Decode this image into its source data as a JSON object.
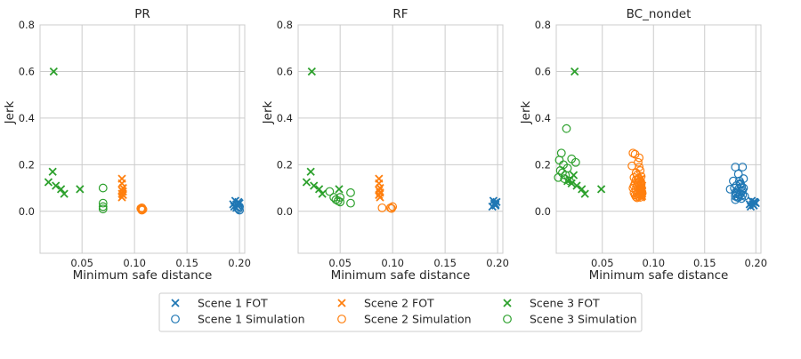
{
  "colors": {
    "scene1": "#1f77b4",
    "scene2": "#ff7f0e",
    "scene3": "#2ca02c",
    "grid": "#cccccc",
    "frame": "#cccccc",
    "text": "#262626"
  },
  "legend": {
    "placement": "bottom-center",
    "entries": [
      {
        "label": "Scene 1 FOT",
        "color": "scene1",
        "marker": "x"
      },
      {
        "label": "Scene 1 Simulation",
        "color": "scene1",
        "marker": "o"
      },
      {
        "label": "Scene 2 FOT",
        "color": "scene2",
        "marker": "x"
      },
      {
        "label": "Scene 2 Simulation",
        "color": "scene2",
        "marker": "o"
      },
      {
        "label": "Scene 3 FOT",
        "color": "scene3",
        "marker": "x"
      },
      {
        "label": "Scene 3 Simulation",
        "color": "scene3",
        "marker": "o"
      }
    ]
  },
  "chart_data": [
    {
      "type": "scatter",
      "title": "PR",
      "xlabel": "Minimum safe distance",
      "ylabel": "Jerk",
      "xlim": [
        0.01,
        0.205
      ],
      "ylim": [
        -0.18,
        0.8
      ],
      "xticks": [
        0.05,
        0.1,
        0.15,
        0.2
      ],
      "xtick_labels": [
        "0.05",
        "0.10",
        "0.15",
        "0.20"
      ],
      "yticks": [
        0.0,
        0.2,
        0.4,
        0.6,
        0.8
      ],
      "ytick_labels": [
        "0.0",
        "0.2",
        "0.4",
        "0.6",
        "0.8"
      ],
      "grid": true,
      "series": [
        {
          "name": "Scene 1 FOT",
          "color": "scene1",
          "marker": "x",
          "x": [
            0.195,
            0.197,
            0.199,
            0.196,
            0.198,
            0.2,
            0.197,
            0.194
          ],
          "y": [
            0.02,
            0.03,
            0.04,
            0.045,
            0.025,
            0.035,
            0.015,
            0.03
          ]
        },
        {
          "name": "Scene 1 Simulation",
          "color": "scene1",
          "marker": "o",
          "x": [
            0.199,
            0.2,
            0.2,
            0.198
          ],
          "y": [
            0.01,
            0.005,
            0.02,
            0.015
          ]
        },
        {
          "name": "Scene 2 FOT",
          "color": "scene2",
          "marker": "x",
          "x": [
            0.088,
            0.088,
            0.089,
            0.088,
            0.089,
            0.088,
            0.089,
            0.088
          ],
          "y": [
            0.14,
            0.12,
            0.1,
            0.09,
            0.085,
            0.075,
            0.07,
            0.06
          ]
        },
        {
          "name": "Scene 2 Simulation",
          "color": "scene2",
          "marker": "o",
          "x": [
            0.107,
            0.107,
            0.108,
            0.107,
            0.106
          ],
          "y": [
            0.015,
            0.01,
            0.008,
            0.005,
            0.012
          ]
        },
        {
          "name": "Scene 3 FOT",
          "color": "scene3",
          "marker": "x",
          "x": [
            0.023,
            0.022,
            0.018,
            0.025,
            0.03,
            0.033,
            0.048
          ],
          "y": [
            0.6,
            0.17,
            0.125,
            0.11,
            0.095,
            0.075,
            0.095
          ]
        },
        {
          "name": "Scene 3 Simulation",
          "color": "scene3",
          "marker": "o",
          "x": [
            0.07,
            0.07,
            0.07,
            0.07
          ],
          "y": [
            0.1,
            0.035,
            0.02,
            0.01
          ]
        }
      ]
    },
    {
      "type": "scatter",
      "title": "RF",
      "xlabel": "Minimum safe distance",
      "ylabel": "Jerk",
      "xlim": [
        0.01,
        0.205
      ],
      "ylim": [
        -0.18,
        0.8
      ],
      "xticks": [
        0.05,
        0.1,
        0.15,
        0.2
      ],
      "xtick_labels": [
        "0.05",
        "0.10",
        "0.15",
        "0.20"
      ],
      "yticks": [
        0.0,
        0.2,
        0.4,
        0.6,
        0.8
      ],
      "ytick_labels": [
        "0.0",
        "0.2",
        "0.4",
        "0.6",
        "0.8"
      ],
      "grid": true,
      "series": [
        {
          "name": "Scene 1 FOT",
          "color": "scene1",
          "marker": "x",
          "x": [
            0.195,
            0.197,
            0.199,
            0.196,
            0.198,
            0.197,
            0.198
          ],
          "y": [
            0.02,
            0.03,
            0.04,
            0.045,
            0.025,
            0.035,
            0.03
          ]
        },
        {
          "name": "Scene 1 Simulation",
          "color": "scene1",
          "marker": "o",
          "x": [],
          "y": []
        },
        {
          "name": "Scene 2 FOT",
          "color": "scene2",
          "marker": "x",
          "x": [
            0.087,
            0.087,
            0.088,
            0.087,
            0.088,
            0.087,
            0.088
          ],
          "y": [
            0.14,
            0.12,
            0.1,
            0.09,
            0.08,
            0.07,
            0.06
          ]
        },
        {
          "name": "Scene 2 Simulation",
          "color": "scene2",
          "marker": "o",
          "x": [
            0.09,
            0.098,
            0.1,
            0.099
          ],
          "y": [
            0.015,
            0.015,
            0.02,
            0.012
          ]
        },
        {
          "name": "Scene 3 FOT",
          "color": "scene3",
          "marker": "x",
          "x": [
            0.023,
            0.022,
            0.018,
            0.025,
            0.03,
            0.033,
            0.049
          ],
          "y": [
            0.6,
            0.17,
            0.125,
            0.11,
            0.095,
            0.075,
            0.095
          ]
        },
        {
          "name": "Scene 3 Simulation",
          "color": "scene3",
          "marker": "o",
          "x": [
            0.04,
            0.044,
            0.046,
            0.048,
            0.05,
            0.05,
            0.06,
            0.06
          ],
          "y": [
            0.085,
            0.06,
            0.05,
            0.045,
            0.06,
            0.04,
            0.08,
            0.035
          ]
        }
      ]
    },
    {
      "type": "scatter",
      "title": "BC_nondet",
      "xlabel": "Minimum safe distance",
      "ylabel": "Jerk",
      "xlim": [
        0.005,
        0.205
      ],
      "ylim": [
        -0.18,
        0.8
      ],
      "xticks": [
        0.05,
        0.1,
        0.15,
        0.2
      ],
      "xtick_labels": [
        "0.05",
        "0.10",
        "0.15",
        "0.20"
      ],
      "yticks": [
        0.0,
        0.2,
        0.4,
        0.6,
        0.8
      ],
      "ytick_labels": [
        "0.0",
        "0.2",
        "0.4",
        "0.6",
        "0.8"
      ],
      "grid": true,
      "series": [
        {
          "name": "Scene 1 FOT",
          "color": "scene1",
          "marker": "x",
          "x": [
            0.195,
            0.197,
            0.199,
            0.196,
            0.198,
            0.2,
            0.194,
            0.198
          ],
          "y": [
            0.02,
            0.03,
            0.04,
            0.045,
            0.025,
            0.035,
            0.03,
            0.04
          ]
        },
        {
          "name": "Scene 1 Simulation",
          "color": "scene1",
          "marker": "o",
          "x": [
            0.18,
            0.187,
            0.175,
            0.183,
            0.178,
            0.188,
            0.185,
            0.181,
            0.186,
            0.179,
            0.183,
            0.187,
            0.182,
            0.18,
            0.185,
            0.184,
            0.189,
            0.182,
            0.186,
            0.18,
            0.188,
            0.184,
            0.181,
            0.186,
            0.183,
            0.185,
            0.18,
            0.187
          ],
          "y": [
            0.19,
            0.19,
            0.095,
            0.16,
            0.13,
            0.14,
            0.12,
            0.11,
            0.105,
            0.1,
            0.095,
            0.09,
            0.085,
            0.08,
            0.075,
            0.07,
            0.065,
            0.06,
            0.055,
            0.05,
            0.1,
            0.13,
            0.075,
            0.085,
            0.06,
            0.115,
            0.065,
            0.07
          ]
        },
        {
          "name": "Scene 2 FOT",
          "color": "scene2",
          "marker": "x",
          "x": [
            0.088,
            0.088,
            0.089,
            0.088,
            0.089,
            0.088,
            0.089,
            0.088,
            0.089,
            0.088
          ],
          "y": [
            0.14,
            0.12,
            0.11,
            0.1,
            0.09,
            0.085,
            0.075,
            0.07,
            0.065,
            0.06
          ]
        },
        {
          "name": "Scene 2 Simulation",
          "color": "scene2",
          "marker": "o",
          "x": [
            0.08,
            0.082,
            0.086,
            0.085,
            0.087,
            0.083,
            0.079,
            0.084,
            0.088,
            0.081,
            0.086,
            0.083,
            0.087,
            0.085,
            0.082,
            0.088,
            0.084,
            0.086,
            0.08,
            0.083,
            0.087,
            0.085,
            0.081,
            0.089,
            0.084,
            0.086,
            0.082,
            0.088,
            0.085,
            0.083,
            0.087,
            0.084,
            0.086,
            0.081,
            0.088,
            0.085
          ],
          "y": [
            0.25,
            0.245,
            0.23,
            0.21,
            0.175,
            0.165,
            0.195,
            0.155,
            0.15,
            0.145,
            0.14,
            0.135,
            0.13,
            0.125,
            0.12,
            0.115,
            0.11,
            0.105,
            0.1,
            0.095,
            0.09,
            0.085,
            0.08,
            0.078,
            0.075,
            0.072,
            0.07,
            0.068,
            0.065,
            0.062,
            0.06,
            0.058,
            0.19,
            0.11,
            0.095,
            0.14
          ]
        },
        {
          "name": "Scene 3 FOT",
          "color": "scene3",
          "marker": "x",
          "x": [
            0.023,
            0.022,
            0.018,
            0.025,
            0.03,
            0.033,
            0.049,
            0.016,
            0.02
          ],
          "y": [
            0.6,
            0.155,
            0.135,
            0.11,
            0.095,
            0.075,
            0.095,
            0.13,
            0.12
          ]
        },
        {
          "name": "Scene 3 Simulation",
          "color": "scene3",
          "marker": "o",
          "x": [
            0.015,
            0.01,
            0.008,
            0.02,
            0.024,
            0.012,
            0.016,
            0.009,
            0.011,
            0.014,
            0.007,
            0.013,
            0.018
          ],
          "y": [
            0.355,
            0.25,
            0.22,
            0.225,
            0.21,
            0.2,
            0.185,
            0.175,
            0.165,
            0.155,
            0.145,
            0.14,
            0.13
          ]
        }
      ]
    }
  ]
}
